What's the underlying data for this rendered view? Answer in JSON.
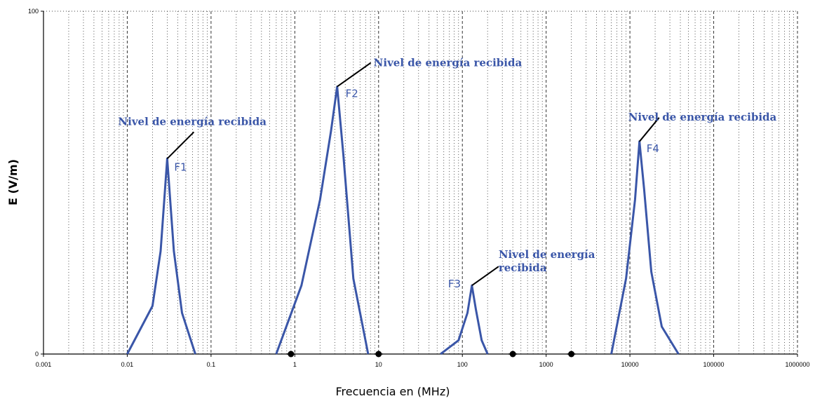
{
  "chart_data": {
    "type": "line",
    "title": "",
    "xlabel": "Frecuencia en (MHz)",
    "ylabel": "E (V/m)",
    "x_scale": "log",
    "xlim": [
      0.001,
      1000000
    ],
    "ylim": [
      0,
      100
    ],
    "grid": true,
    "legend": "none",
    "x_ticks": [
      "0.001",
      "0.01",
      "0.1",
      "1",
      "10",
      "100",
      "1000",
      "10000",
      "100000",
      "1000000"
    ],
    "y_ticks": [
      "0",
      "100"
    ],
    "line_color": "#3a56a8",
    "series": [
      {
        "label": "F1",
        "x": [
          0.01,
          0.02,
          0.025,
          0.03,
          0.036,
          0.045,
          0.065
        ],
        "y": [
          0,
          14,
          30,
          57,
          30,
          12,
          0
        ]
      },
      {
        "label": "F2",
        "x": [
          0.6,
          1.2,
          2.0,
          2.7,
          3.2,
          3.8,
          5.0,
          7.5
        ],
        "y": [
          0,
          20,
          45,
          65,
          78,
          58,
          22,
          0
        ]
      },
      {
        "label": "F3",
        "x": [
          55,
          90,
          115,
          130,
          145,
          170,
          200
        ],
        "y": [
          0,
          4,
          12,
          20,
          13,
          4,
          0
        ]
      },
      {
        "label": "F4",
        "x": [
          6000,
          9000,
          11500,
          13000,
          14800,
          18000,
          24000,
          38000
        ],
        "y": [
          0,
          22,
          45,
          62,
          48,
          24,
          8,
          0
        ]
      }
    ],
    "annotations": [
      {
        "text": "Nivel de energía recibida",
        "target": "F1"
      },
      {
        "text": "Nivel de energía recibida",
        "target": "F2"
      },
      {
        "lines": [
          "Nivel de energía",
          "recibida"
        ],
        "target": "F3"
      },
      {
        "text": "Nivel de energía recibida",
        "target": "F4"
      }
    ],
    "markers": {
      "x": [
        0.9,
        10,
        400,
        2000
      ],
      "y": [
        0,
        0,
        0,
        0
      ]
    }
  }
}
